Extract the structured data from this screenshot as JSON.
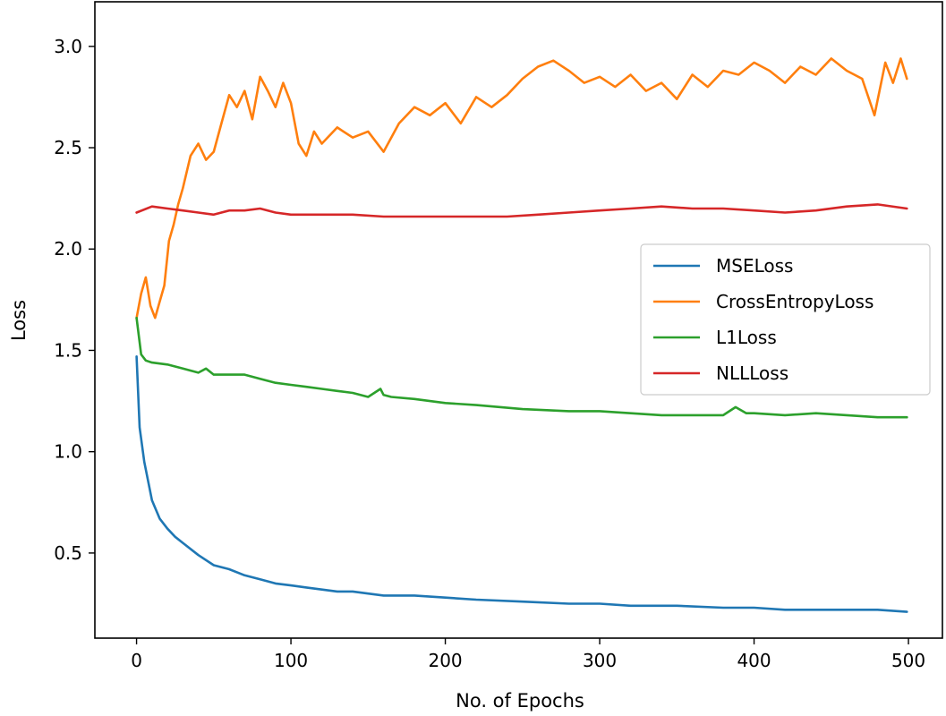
{
  "chart_data": {
    "type": "line",
    "title": "",
    "xlabel": "No. of Epochs",
    "ylabel": "Loss",
    "xlim": [
      -27,
      522
    ],
    "ylim": [
      0.08,
      3.22
    ],
    "xticks": [
      0,
      100,
      200,
      300,
      400,
      500
    ],
    "yticks": [
      0.5,
      1.0,
      1.5,
      2.0,
      2.5,
      3.0
    ],
    "xtick_labels": [
      "0",
      "100",
      "200",
      "300",
      "400",
      "500"
    ],
    "ytick_labels": [
      "0.5",
      "1.0",
      "1.5",
      "2.0",
      "2.5",
      "3.0"
    ],
    "grid": false,
    "legend_position": "center-right",
    "series": [
      {
        "name": "MSELoss",
        "color": "#1f77b4",
        "x": [
          0,
          2,
          5,
          10,
          15,
          20,
          25,
          30,
          40,
          50,
          60,
          70,
          80,
          90,
          100,
          110,
          120,
          130,
          140,
          150,
          160,
          180,
          200,
          220,
          250,
          280,
          300,
          320,
          350,
          380,
          400,
          420,
          440,
          460,
          480,
          499
        ],
        "y": [
          1.47,
          1.12,
          0.95,
          0.76,
          0.67,
          0.62,
          0.58,
          0.55,
          0.49,
          0.44,
          0.42,
          0.39,
          0.37,
          0.35,
          0.34,
          0.33,
          0.32,
          0.31,
          0.31,
          0.3,
          0.29,
          0.29,
          0.28,
          0.27,
          0.26,
          0.25,
          0.25,
          0.24,
          0.24,
          0.23,
          0.23,
          0.22,
          0.22,
          0.22,
          0.22,
          0.21
        ]
      },
      {
        "name": "CrossEntropyLoss",
        "color": "#ff7f0e",
        "x": [
          0,
          3,
          6,
          9,
          12,
          15,
          18,
          21,
          24,
          27,
          30,
          35,
          40,
          45,
          50,
          55,
          60,
          65,
          70,
          75,
          80,
          85,
          90,
          95,
          100,
          105,
          110,
          115,
          120,
          130,
          140,
          150,
          160,
          170,
          180,
          190,
          200,
          210,
          220,
          230,
          240,
          250,
          260,
          270,
          280,
          290,
          300,
          310,
          320,
          330,
          340,
          350,
          360,
          370,
          380,
          390,
          400,
          410,
          420,
          430,
          440,
          450,
          460,
          470,
          478,
          485,
          490,
          495,
          499
        ],
        "y": [
          1.66,
          1.78,
          1.86,
          1.72,
          1.66,
          1.74,
          1.82,
          2.04,
          2.12,
          2.22,
          2.3,
          2.46,
          2.52,
          2.44,
          2.48,
          2.62,
          2.76,
          2.7,
          2.78,
          2.64,
          2.85,
          2.78,
          2.7,
          2.82,
          2.72,
          2.52,
          2.46,
          2.58,
          2.52,
          2.6,
          2.55,
          2.58,
          2.48,
          2.62,
          2.7,
          2.66,
          2.72,
          2.62,
          2.75,
          2.7,
          2.76,
          2.84,
          2.9,
          2.93,
          2.88,
          2.82,
          2.85,
          2.8,
          2.86,
          2.78,
          2.82,
          2.74,
          2.86,
          2.8,
          2.88,
          2.86,
          2.92,
          2.88,
          2.82,
          2.9,
          2.86,
          2.94,
          2.88,
          2.84,
          2.66,
          2.92,
          2.82,
          2.94,
          2.84
        ]
      },
      {
        "name": "L1Loss",
        "color": "#2ca02c",
        "x": [
          0,
          3,
          6,
          10,
          20,
          30,
          40,
          45,
          50,
          60,
          70,
          80,
          90,
          100,
          110,
          120,
          130,
          140,
          150,
          158,
          160,
          165,
          180,
          200,
          220,
          250,
          280,
          300,
          320,
          340,
          360,
          380,
          388,
          395,
          400,
          420,
          440,
          460,
          480,
          499
        ],
        "y": [
          1.66,
          1.48,
          1.45,
          1.44,
          1.43,
          1.41,
          1.39,
          1.41,
          1.38,
          1.38,
          1.38,
          1.36,
          1.34,
          1.33,
          1.32,
          1.31,
          1.3,
          1.29,
          1.27,
          1.31,
          1.28,
          1.27,
          1.26,
          1.24,
          1.23,
          1.21,
          1.2,
          1.2,
          1.19,
          1.18,
          1.18,
          1.18,
          1.22,
          1.19,
          1.19,
          1.18,
          1.19,
          1.18,
          1.17,
          1.17
        ]
      },
      {
        "name": "NLLLoss",
        "color": "#d62728",
        "x": [
          0,
          10,
          20,
          30,
          40,
          50,
          60,
          70,
          80,
          90,
          100,
          120,
          140,
          160,
          180,
          200,
          220,
          240,
          260,
          280,
          300,
          320,
          340,
          360,
          380,
          400,
          420,
          440,
          460,
          480,
          499
        ],
        "y": [
          2.18,
          2.21,
          2.2,
          2.19,
          2.18,
          2.17,
          2.19,
          2.19,
          2.2,
          2.18,
          2.17,
          2.17,
          2.17,
          2.16,
          2.16,
          2.16,
          2.16,
          2.16,
          2.17,
          2.18,
          2.19,
          2.2,
          2.21,
          2.2,
          2.2,
          2.19,
          2.18,
          2.19,
          2.21,
          2.22,
          2.2
        ]
      }
    ]
  }
}
